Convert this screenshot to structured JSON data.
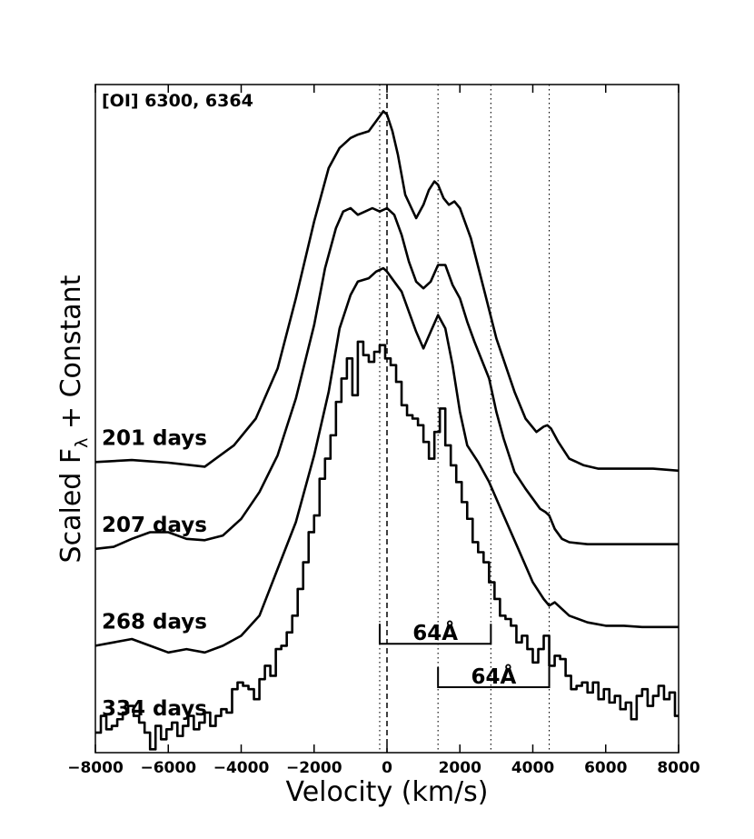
{
  "chart_data": {
    "type": "line",
    "title": "[OI] 6300, 6364",
    "xlabel": "Velocity (km/s)",
    "ylabel": "Scaled F",
    "ylabel_subscript": "λ",
    "ylabel_suffix": " + Constant",
    "xlim": [
      -8000,
      8000
    ],
    "ylim": [
      0,
      10
    ],
    "xticks": [
      -8000,
      -6000,
      -4000,
      -2000,
      0,
      2000,
      4000,
      6000,
      8000
    ],
    "xtick_labels": [
      "−8000",
      "−6000",
      "−4000",
      "−2000",
      "0",
      "2000",
      "4000",
      "6000",
      "8000"
    ],
    "dashed_vlines": [
      0
    ],
    "dotted_vlines": [
      -200,
      1400,
      2850,
      4450
    ],
    "brackets": [
      {
        "x0": -200,
        "x1": 2850,
        "y": 1.63,
        "label": "64Å"
      },
      {
        "x0": 1400,
        "x1": 4450,
        "y": 0.98,
        "label": "64Å"
      }
    ],
    "series": [
      {
        "name": "201 days",
        "style": "smooth",
        "x": [
          -8000,
          -7000,
          -6000,
          -5000,
          -4200,
          -3600,
          -3000,
          -2500,
          -2000,
          -1600,
          -1300,
          -1000,
          -800,
          -500,
          -300,
          -100,
          0,
          150,
          300,
          500,
          800,
          1000,
          1150,
          1300,
          1400,
          1550,
          1700,
          1850,
          2000,
          2300,
          2700,
          3000,
          3500,
          3800,
          4100,
          4300,
          4400,
          4500,
          4700,
          5000,
          5400,
          5800,
          6300,
          6800,
          7300,
          8000
        ],
        "y": [
          4.35,
          4.38,
          4.34,
          4.28,
          4.6,
          5.0,
          5.75,
          6.8,
          7.95,
          8.75,
          9.05,
          9.2,
          9.25,
          9.3,
          9.45,
          9.6,
          9.55,
          9.3,
          8.95,
          8.35,
          8.0,
          8.2,
          8.42,
          8.55,
          8.5,
          8.3,
          8.2,
          8.25,
          8.15,
          7.7,
          6.85,
          6.2,
          5.4,
          5.0,
          4.8,
          4.88,
          4.9,
          4.85,
          4.65,
          4.4,
          4.3,
          4.25,
          4.25,
          4.25,
          4.25,
          4.22
        ]
      },
      {
        "name": "207 days",
        "style": "smooth",
        "x": [
          -8000,
          -7500,
          -7000,
          -6500,
          -6000,
          -5500,
          -5000,
          -4500,
          -4000,
          -3500,
          -3000,
          -2500,
          -2000,
          -1700,
          -1400,
          -1200,
          -1000,
          -800,
          -600,
          -400,
          -200,
          0,
          200,
          400,
          600,
          800,
          1000,
          1200,
          1400,
          1600,
          1800,
          2000,
          2200,
          2400,
          2800,
          3000,
          3200,
          3500,
          3800,
          4000,
          4200,
          4350,
          4450,
          4600,
          4800,
          5000,
          5500,
          6000,
          6500,
          7000,
          7500,
          8000
        ],
        "y": [
          3.05,
          3.08,
          3.2,
          3.3,
          3.3,
          3.2,
          3.18,
          3.25,
          3.5,
          3.9,
          4.45,
          5.3,
          6.4,
          7.25,
          7.85,
          8.1,
          8.15,
          8.05,
          8.1,
          8.15,
          8.1,
          8.15,
          8.05,
          7.75,
          7.35,
          7.05,
          6.95,
          7.05,
          7.3,
          7.3,
          7.0,
          6.8,
          6.45,
          6.15,
          5.6,
          5.1,
          4.7,
          4.2,
          3.95,
          3.8,
          3.65,
          3.6,
          3.55,
          3.35,
          3.2,
          3.15,
          3.12,
          3.12,
          3.12,
          3.12,
          3.12,
          3.12
        ]
      },
      {
        "name": "268 days",
        "style": "smooth",
        "x": [
          -8000,
          -7500,
          -7000,
          -6500,
          -6000,
          -5500,
          -5000,
          -4500,
          -4000,
          -3500,
          -3000,
          -2500,
          -2000,
          -1600,
          -1300,
          -1000,
          -800,
          -500,
          -300,
          -100,
          0,
          200,
          400,
          600,
          800,
          1000,
          1200,
          1400,
          1600,
          1800,
          2000,
          2200,
          2500,
          2800,
          3200,
          3600,
          4000,
          4300,
          4450,
          4600,
          5000,
          5500,
          6000,
          6500,
          7000,
          7500,
          8000
        ],
        "y": [
          1.6,
          1.65,
          1.7,
          1.6,
          1.5,
          1.55,
          1.5,
          1.6,
          1.75,
          2.05,
          2.75,
          3.45,
          4.45,
          5.4,
          6.35,
          6.85,
          7.05,
          7.1,
          7.2,
          7.25,
          7.2,
          7.05,
          6.9,
          6.6,
          6.3,
          6.05,
          6.3,
          6.55,
          6.35,
          5.8,
          5.1,
          4.6,
          4.35,
          4.05,
          3.55,
          3.05,
          2.55,
          2.3,
          2.2,
          2.25,
          2.05,
          1.95,
          1.9,
          1.9,
          1.88,
          1.88,
          1.88
        ]
      },
      {
        "name": "334 days",
        "style": "steps",
        "x": [
          -8000,
          -7850,
          -7700,
          -7550,
          -7400,
          -7250,
          -7100,
          -6950,
          -6800,
          -6650,
          -6500,
          -6350,
          -6200,
          -6050,
          -5900,
          -5750,
          -5600,
          -5450,
          -5300,
          -5150,
          -5000,
          -4850,
          -4700,
          -4550,
          -4400,
          -4250,
          -4100,
          -3950,
          -3800,
          -3650,
          -3500,
          -3350,
          -3200,
          -3050,
          -2900,
          -2750,
          -2600,
          -2450,
          -2300,
          -2150,
          -2000,
          -1850,
          -1700,
          -1550,
          -1400,
          -1250,
          -1100,
          -950,
          -800,
          -650,
          -500,
          -350,
          -200,
          -50,
          100,
          250,
          400,
          550,
          700,
          850,
          1000,
          1150,
          1300,
          1450,
          1600,
          1750,
          1900,
          2050,
          2200,
          2350,
          2500,
          2650,
          2800,
          2950,
          3100,
          3250,
          3400,
          3550,
          3700,
          3850,
          4000,
          4150,
          4300,
          4450,
          4600,
          4750,
          4900,
          5050,
          5200,
          5350,
          5500,
          5650,
          5800,
          5950,
          6100,
          6250,
          6400,
          6550,
          6700,
          6850,
          7000,
          7150,
          7300,
          7450,
          7600,
          7750,
          7900
        ],
        "y": [
          0.3,
          0.55,
          0.35,
          0.4,
          0.5,
          0.6,
          0.7,
          0.55,
          0.45,
          0.3,
          0.05,
          0.4,
          0.2,
          0.35,
          0.45,
          0.25,
          0.4,
          0.55,
          0.35,
          0.45,
          0.6,
          0.4,
          0.55,
          0.65,
          0.6,
          0.95,
          1.05,
          1.0,
          0.95,
          0.8,
          1.1,
          1.3,
          1.15,
          1.55,
          1.6,
          1.8,
          2.05,
          2.45,
          2.85,
          3.3,
          3.55,
          4.1,
          4.4,
          4.75,
          5.25,
          5.6,
          5.9,
          5.35,
          6.15,
          5.95,
          5.85,
          6.0,
          6.1,
          5.9,
          5.8,
          5.55,
          5.2,
          5.05,
          5.0,
          4.9,
          4.65,
          4.4,
          4.8,
          5.15,
          4.6,
          4.3,
          4.05,
          3.75,
          3.5,
          3.15,
          3.0,
          2.85,
          2.55,
          2.3,
          2.05,
          2.0,
          1.9,
          1.65,
          1.75,
          1.55,
          1.35,
          1.55,
          1.75,
          1.3,
          1.45,
          1.4,
          1.15,
          0.95,
          1.0,
          1.05,
          0.9,
          1.05,
          0.8,
          0.95,
          0.75,
          0.85,
          0.65,
          0.75,
          0.5,
          0.85,
          0.95,
          0.7,
          0.85,
          1.0,
          0.8,
          0.9,
          0.55
        ]
      }
    ]
  }
}
